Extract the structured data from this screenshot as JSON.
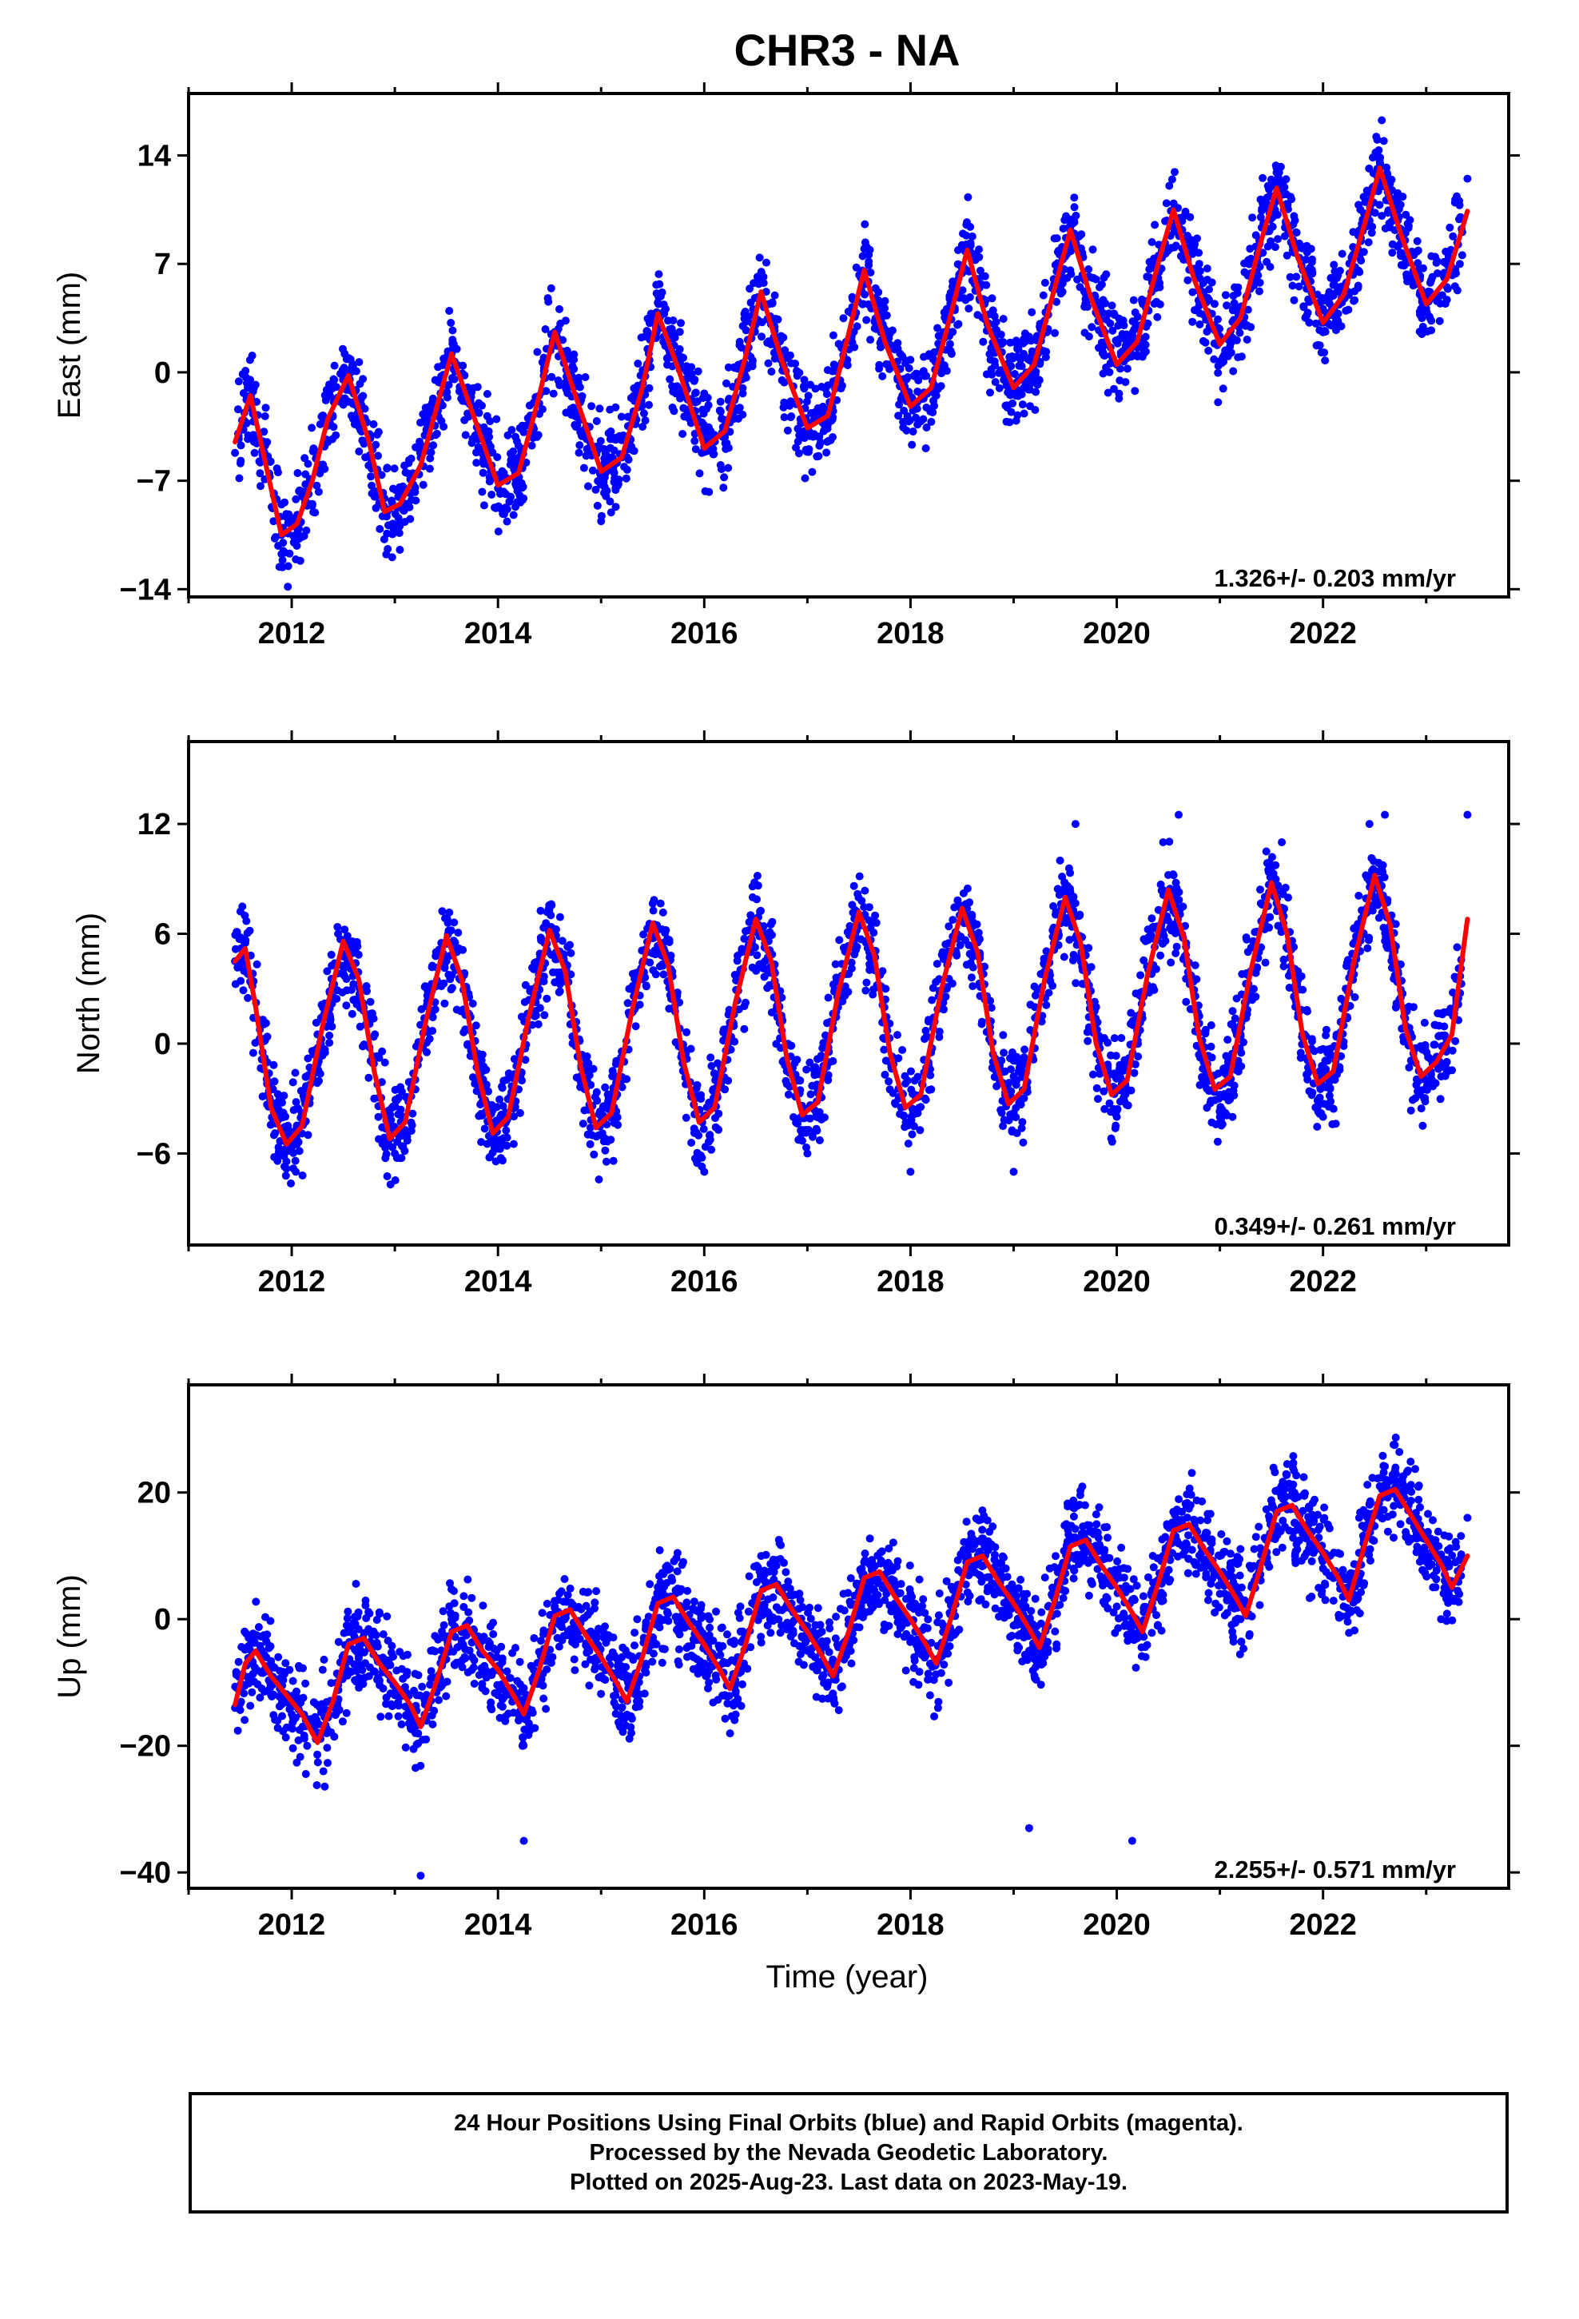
{
  "title": "CHR3 - NA",
  "colors": {
    "final_orbits": "#0000ff",
    "model": "#ff0000",
    "frame": "#000000"
  },
  "chart_data": [
    {
      "type": "scatter",
      "name": "east",
      "ylabel": "East (mm)",
      "xlabel": "",
      "xlim": [
        2011.0,
        2023.8
      ],
      "ylim": [
        -14.5,
        18.0
      ],
      "yticks": [
        14,
        7,
        0,
        -7,
        -14
      ],
      "xticks": [
        2012,
        2014,
        2016,
        2018,
        2020,
        2022
      ],
      "rate": "1.326+/- 0.203 mm/yr",
      "series": [
        {
          "role": "data",
          "color": "#0000ff",
          "x": [
            2011.45,
            2011.6,
            2011.75,
            2011.9,
            2012.05,
            2012.2,
            2012.35,
            2012.55,
            2012.75,
            2012.9,
            2013.05,
            2013.25,
            2013.6,
            2013.8,
            2014.0,
            2014.2,
            2014.4,
            2014.55,
            2014.75,
            2015.0,
            2015.2,
            2015.45,
            2015.55,
            2015.75,
            2016.0,
            2016.2,
            2016.45,
            2016.6,
            2016.8,
            2017.0,
            2017.25,
            2017.55,
            2017.8,
            2018.0,
            2018.25,
            2018.55,
            2018.8,
            2019.0,
            2019.25,
            2019.55,
            2019.8,
            2020.0,
            2020.25,
            2020.55,
            2020.8,
            2021.0,
            2021.25,
            2021.55,
            2021.8,
            2022.0,
            2022.25,
            2022.55,
            2022.8,
            2023.0,
            2023.2,
            2023.4
          ],
          "y": [
            -5.2,
            -1.5,
            -5.5,
            -10.5,
            -11.2,
            -8.5,
            -4.5,
            -0.3,
            -4.0,
            -8.8,
            -8.0,
            -5.5,
            1.5,
            -3.5,
            -7.5,
            -6.8,
            -2.0,
            2.6,
            -1.5,
            -6.2,
            -5.5,
            1.5,
            4.5,
            0.5,
            -4.8,
            -4.2,
            1.0,
            5.2,
            1.0,
            -3.2,
            -2.5,
            6.5,
            2.5,
            -2.0,
            -1.5,
            7.8,
            4.0,
            -1.2,
            -0.5,
            9.2,
            6.0,
            0.5,
            1.0,
            10.5,
            7.0,
            2.0,
            3.0,
            12.0,
            8.0,
            3.2,
            5.0,
            13.2,
            9.0,
            4.5,
            5.5,
            12.5
          ]
        },
        {
          "role": "model",
          "color": "#ff0000",
          "x": [
            2011.45,
            2011.6,
            2011.75,
            2011.9,
            2012.05,
            2012.2,
            2012.35,
            2012.55,
            2012.75,
            2012.9,
            2013.05,
            2013.25,
            2013.55,
            2013.8,
            2014.0,
            2014.2,
            2014.4,
            2014.55,
            2014.75,
            2015.0,
            2015.2,
            2015.4,
            2015.55,
            2015.75,
            2016.0,
            2016.2,
            2016.4,
            2016.55,
            2016.75,
            2017.0,
            2017.2,
            2017.4,
            2017.55,
            2017.75,
            2018.0,
            2018.2,
            2018.4,
            2018.55,
            2018.75,
            2019.0,
            2019.2,
            2019.4,
            2019.55,
            2019.75,
            2020.0,
            2020.2,
            2020.4,
            2020.55,
            2020.75,
            2021.0,
            2021.2,
            2021.4,
            2021.55,
            2021.75,
            2022.0,
            2022.2,
            2022.4,
            2022.55,
            2022.75,
            2023.0,
            2023.2,
            2023.4
          ],
          "y": [
            -4.5,
            -1.5,
            -6.0,
            -10.5,
            -9.8,
            -7.0,
            -3.0,
            -0.2,
            -4.5,
            -9.0,
            -8.5,
            -6.0,
            1.2,
            -3.5,
            -7.3,
            -6.5,
            -1.5,
            2.6,
            -1.5,
            -6.4,
            -5.5,
            -1.0,
            3.8,
            0.2,
            -4.9,
            -3.8,
            1.0,
            5.2,
            0.8,
            -3.6,
            -2.8,
            2.5,
            6.6,
            2.0,
            -2.2,
            -1.0,
            4.0,
            7.9,
            3.0,
            -1.0,
            0.5,
            5.5,
            9.2,
            4.8,
            0.5,
            2.0,
            7.0,
            10.5,
            6.0,
            1.8,
            3.5,
            8.5,
            11.9,
            7.5,
            3.2,
            5.0,
            9.5,
            13.2,
            9.0,
            4.4,
            6.0,
            10.4
          ]
        }
      ]
    },
    {
      "type": "scatter",
      "name": "north",
      "ylabel": "North (mm)",
      "xlabel": "",
      "xlim": [
        2011.0,
        2023.8
      ],
      "ylim": [
        -11.0,
        16.5
      ],
      "yticks": [
        12,
        6,
        0,
        -6
      ],
      "xticks": [
        2012,
        2014,
        2016,
        2018,
        2020,
        2022
      ],
      "rate": "0.349+/- 0.261 mm/yr",
      "series": [
        {
          "role": "data",
          "color": "#0000ff",
          "x": [
            2011.45,
            2011.55,
            2011.75,
            2011.9,
            2012.05,
            2012.25,
            2012.45,
            2012.6,
            2012.8,
            2013.0,
            2013.2,
            2013.45,
            2013.6,
            2013.8,
            2014.0,
            2014.2,
            2014.45,
            2014.6,
            2014.8,
            2015.0,
            2015.2,
            2015.45,
            2015.6,
            2015.8,
            2016.0,
            2016.2,
            2016.45,
            2016.6,
            2016.8,
            2017.0,
            2017.2,
            2017.45,
            2017.6,
            2017.8,
            2018.0,
            2018.2,
            2018.45,
            2018.6,
            2018.8,
            2019.0,
            2019.2,
            2019.45,
            2019.6,
            2019.8,
            2020.0,
            2020.2,
            2020.45,
            2020.6,
            2020.8,
            2021.0,
            2021.2,
            2021.45,
            2021.6,
            2021.8,
            2022.0,
            2022.2,
            2022.45,
            2022.6,
            2022.8,
            2023.0,
            2023.2,
            2023.4
          ],
          "y": [
            4.5,
            5.5,
            -1.0,
            -6.0,
            -5.5,
            0.5,
            6.0,
            4.0,
            -3.0,
            -6.0,
            -2.5,
            5.5,
            5.0,
            -2.0,
            -5.5,
            -2.5,
            5.5,
            5.0,
            -2.0,
            -5.0,
            -2.0,
            5.0,
            5.5,
            -1.5,
            -7.0,
            -2.5,
            5.0,
            6.0,
            -1.5,
            -6.0,
            -2.0,
            5.5,
            5.0,
            -2.5,
            -7.0,
            -2.5,
            6.0,
            6.0,
            -1.0,
            -7.0,
            0.5,
            10.0,
            12.0,
            2.0,
            -4.0,
            0.5,
            11.0,
            12.5,
            1.5,
            -4.0,
            0.5,
            10.5,
            11.0,
            0.5,
            -4.0,
            1.0,
            12.0,
            12.5,
            1.0,
            -2.0,
            -1.0,
            12.5
          ]
        },
        {
          "role": "model",
          "color": "#ff0000",
          "x": [
            2011.45,
            2011.55,
            2011.65,
            2011.8,
            2011.95,
            2012.1,
            2012.3,
            2012.5,
            2012.65,
            2012.8,
            2012.95,
            2013.1,
            2013.3,
            2013.5,
            2013.65,
            2013.8,
            2013.95,
            2014.1,
            2014.3,
            2014.5,
            2014.65,
            2014.8,
            2014.95,
            2015.1,
            2015.3,
            2015.5,
            2015.65,
            2015.8,
            2015.95,
            2016.1,
            2016.3,
            2016.5,
            2016.65,
            2016.8,
            2016.95,
            2017.1,
            2017.3,
            2017.5,
            2017.65,
            2017.8,
            2017.95,
            2018.1,
            2018.3,
            2018.5,
            2018.65,
            2018.8,
            2018.95,
            2019.1,
            2019.3,
            2019.5,
            2019.65,
            2019.8,
            2019.95,
            2020.1,
            2020.3,
            2020.5,
            2020.65,
            2020.8,
            2020.95,
            2021.1,
            2021.3,
            2021.5,
            2021.65,
            2021.8,
            2021.95,
            2022.1,
            2022.3,
            2022.5,
            2022.65,
            2022.8,
            2022.95,
            2023.1,
            2023.25,
            2023.4
          ],
          "y": [
            4.5,
            5.2,
            2.0,
            -3.5,
            -5.5,
            -4.5,
            1.0,
            5.6,
            3.5,
            -1.5,
            -5.2,
            -4.3,
            1.2,
            5.9,
            3.5,
            -1.5,
            -4.9,
            -4.0,
            1.5,
            6.2,
            4.0,
            -1.2,
            -4.6,
            -3.8,
            1.8,
            6.6,
            4.3,
            -1.0,
            -4.3,
            -3.5,
            2.2,
            6.8,
            4.5,
            -0.8,
            -3.9,
            -3.2,
            2.8,
            7.2,
            4.8,
            -0.5,
            -3.5,
            -2.8,
            3.0,
            7.4,
            5.0,
            -0.5,
            -3.3,
            -2.5,
            3.5,
            8.0,
            5.5,
            0.0,
            -2.8,
            -2.0,
            3.8,
            8.4,
            5.8,
            0.3,
            -2.5,
            -1.8,
            4.0,
            8.8,
            6.0,
            0.5,
            -2.2,
            -1.5,
            4.5,
            9.2,
            6.5,
            0.8,
            -1.8,
            -1.0,
            0.5,
            6.8
          ]
        }
      ]
    },
    {
      "type": "scatter",
      "name": "up",
      "ylabel": "Up (mm)",
      "xlabel": "Time (year)",
      "xlim": [
        2011.0,
        2023.8
      ],
      "ylim": [
        -42.5,
        37.0
      ],
      "yticks": [
        20,
        0,
        -20,
        -40
      ],
      "xticks": [
        2012,
        2014,
        2016,
        2018,
        2020,
        2022
      ],
      "rate": "2.255+/- 0.571 mm/yr",
      "series": [
        {
          "role": "data",
          "color": "#0000ff",
          "x": [
            2011.45,
            2011.6,
            2011.8,
            2012.0,
            2012.15,
            2012.3,
            2012.55,
            2012.75,
            2013.0,
            2013.2,
            2013.35,
            2013.55,
            2013.75,
            2014.0,
            2014.2,
            2014.35,
            2014.55,
            2014.75,
            2015.0,
            2015.2,
            2015.35,
            2015.55,
            2015.75,
            2016.0,
            2016.2,
            2016.35,
            2016.55,
            2016.75,
            2017.0,
            2017.2,
            2017.35,
            2017.55,
            2017.75,
            2018.0,
            2018.2,
            2018.35,
            2018.55,
            2018.75,
            2019.0,
            2019.15,
            2019.35,
            2019.55,
            2019.75,
            2020.0,
            2020.2,
            2020.35,
            2020.55,
            2020.75,
            2021.0,
            2021.2,
            2021.35,
            2021.55,
            2021.75,
            2022.0,
            2022.2,
            2022.35,
            2022.55,
            2022.75,
            2023.0,
            2023.2,
            2023.4,
            2013.25,
            2014.25,
            2019.15,
            2020.15
          ],
          "y": [
            -14.0,
            -6.0,
            -12.0,
            -15.0,
            -20.0,
            -8.0,
            -2.0,
            -9.0,
            -12.0,
            -18.0,
            -5.0,
            0.0,
            -6.0,
            -12.0,
            -16.0,
            -3.0,
            2.0,
            -4.0,
            -9.0,
            -14.0,
            0.0,
            4.0,
            -2.0,
            -7.0,
            -12.0,
            2.0,
            7.0,
            -1.0,
            -5.0,
            -10.0,
            4.0,
            9.0,
            3.0,
            -3.0,
            -7.0,
            6.0,
            11.0,
            5.0,
            -1.0,
            -5.0,
            8.0,
            13.0,
            6.0,
            2.0,
            -3.0,
            10.0,
            15.0,
            9.0,
            4.0,
            0.0,
            13.0,
            17.0,
            11.0,
            8.0,
            2.0,
            16.0,
            21.0,
            15.0,
            10.0,
            5.0,
            16.0,
            -40.5,
            -35.0,
            -33.0,
            -35.0
          ]
        },
        {
          "role": "model",
          "color": "#ff0000",
          "x": [
            2011.45,
            2011.55,
            2011.65,
            2011.8,
            2011.95,
            2012.1,
            2012.25,
            2012.4,
            2012.55,
            2012.7,
            2012.85,
            2013.0,
            2013.15,
            2013.25,
            2013.4,
            2013.55,
            2013.7,
            2013.85,
            2014.0,
            2014.15,
            2014.25,
            2014.4,
            2014.55,
            2014.7,
            2014.85,
            2015.0,
            2015.15,
            2015.25,
            2015.4,
            2015.55,
            2015.7,
            2015.85,
            2016.0,
            2016.15,
            2016.25,
            2016.4,
            2016.55,
            2016.7,
            2016.85,
            2017.0,
            2017.15,
            2017.25,
            2017.4,
            2017.55,
            2017.7,
            2017.85,
            2018.0,
            2018.15,
            2018.25,
            2018.4,
            2018.55,
            2018.7,
            2018.85,
            2019.0,
            2019.15,
            2019.25,
            2019.4,
            2019.55,
            2019.7,
            2019.85,
            2020.0,
            2020.15,
            2020.25,
            2020.4,
            2020.55,
            2020.7,
            2020.85,
            2021.0,
            2021.15,
            2021.25,
            2021.4,
            2021.55,
            2021.7,
            2021.85,
            2022.0,
            2022.15,
            2022.25,
            2022.4,
            2022.55,
            2022.7,
            2022.85,
            2023.0,
            2023.15,
            2023.25,
            2023.4
          ],
          "y": [
            -13.5,
            -7.0,
            -5.0,
            -9.0,
            -12.0,
            -15.0,
            -19.5,
            -13.0,
            -4.0,
            -3.0,
            -7.0,
            -10.0,
            -13.5,
            -17.0,
            -10.0,
            -2.0,
            -1.0,
            -5.0,
            -8.0,
            -12.0,
            -15.0,
            -8.0,
            0.5,
            1.5,
            -2.5,
            -6.0,
            -10.0,
            -13.0,
            -6.0,
            2.5,
            3.5,
            -0.5,
            -4.0,
            -8.0,
            -11.0,
            -4.0,
            4.5,
            5.5,
            1.5,
            -2.0,
            -6.0,
            -9.0,
            -2.0,
            6.5,
            7.5,
            3.5,
            0.0,
            -4.0,
            -7.0,
            0.5,
            9.0,
            10.0,
            6.0,
            2.5,
            -1.5,
            -4.5,
            3.0,
            11.5,
            12.5,
            8.5,
            5.0,
            1.0,
            -2.0,
            5.5,
            14.0,
            15.0,
            11.0,
            7.5,
            3.5,
            0.5,
            8.5,
            17.0,
            18.0,
            14.0,
            10.5,
            6.5,
            3.0,
            11.5,
            19.5,
            20.5,
            16.5,
            12.5,
            8.5,
            5.0,
            10.0
          ]
        }
      ]
    }
  ],
  "caption": {
    "line1": "24 Hour Positions Using Final Orbits (blue) and Rapid Orbits (magenta).",
    "line2": "Processed by the Nevada Geodetic Laboratory.",
    "line3": "Plotted on 2025-Aug-23. Last data on 2023-May-19."
  }
}
